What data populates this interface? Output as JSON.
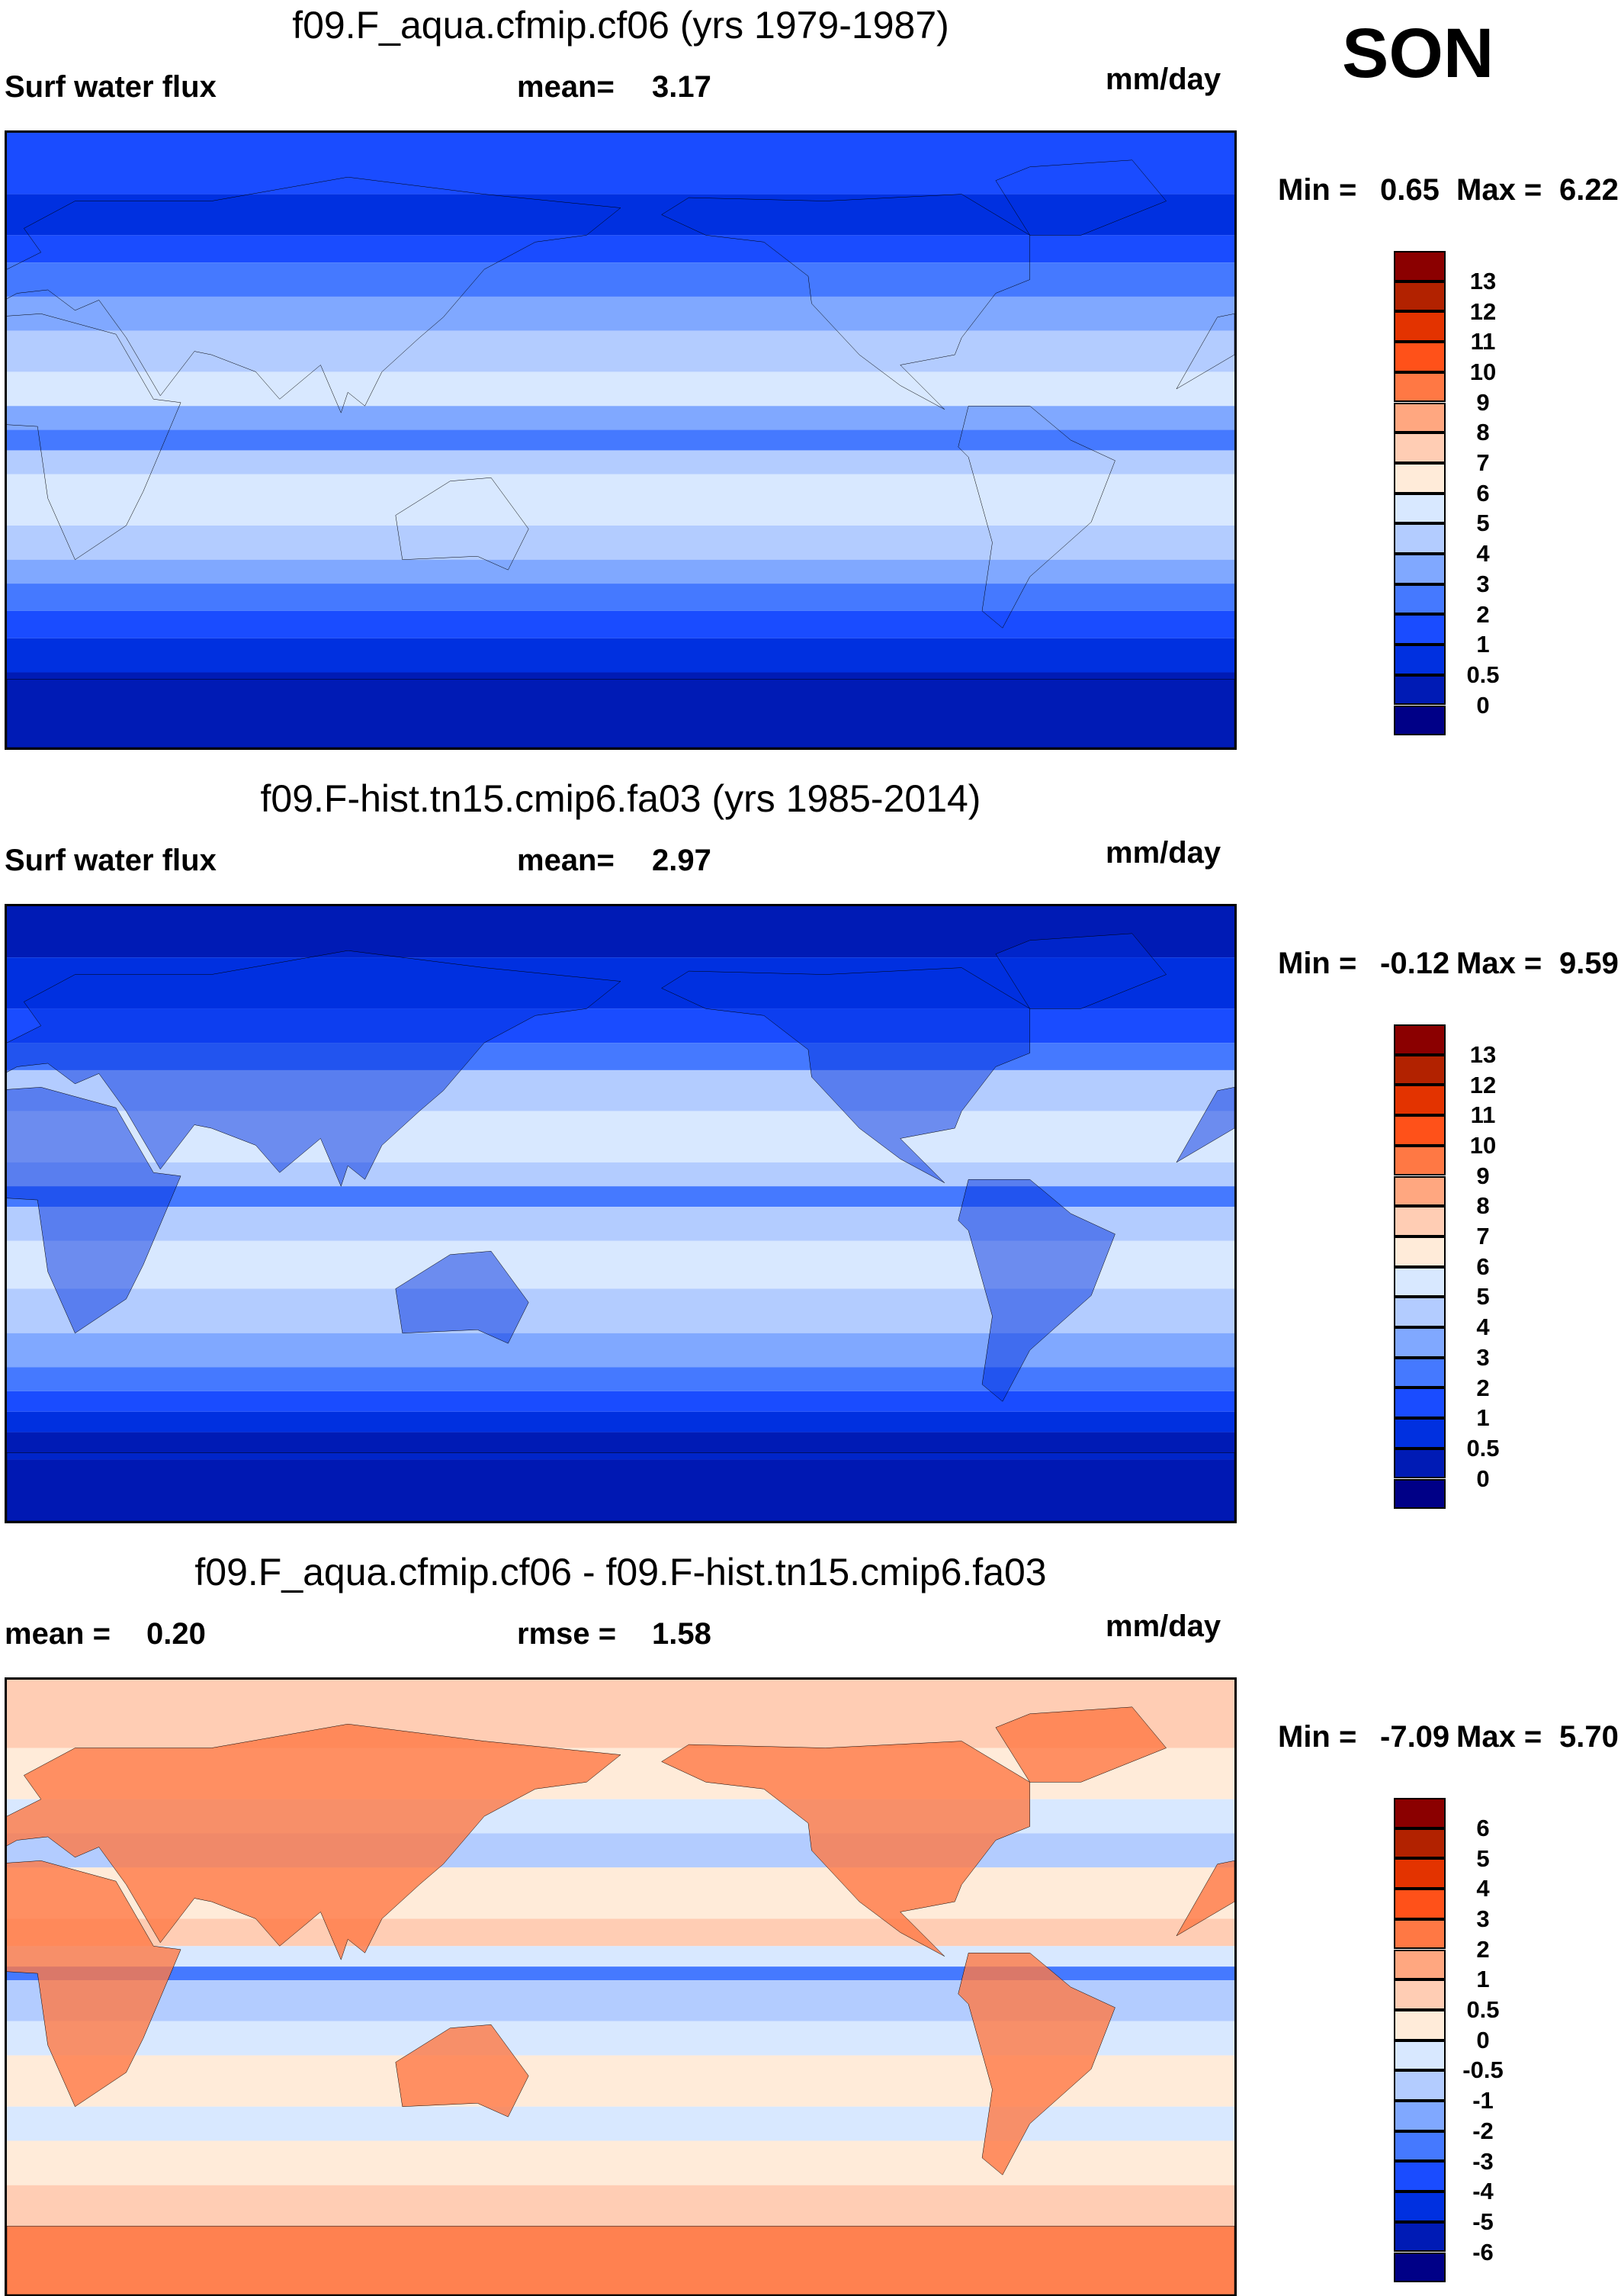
{
  "season": "SON",
  "colors": [
    "#000087",
    "#001bb5",
    "#0030e0",
    "#1a4cff",
    "#4579ff",
    "#80a8ff",
    "#b3ccff",
    "#d8e8ff",
    "#ffebd9",
    "#ffcdb4",
    "#ffa780",
    "#ff7844",
    "#ff5119",
    "#e33300",
    "#b22200",
    "#8b0000"
  ],
  "chart_data": [
    {
      "type": "heatmap",
      "title": "f09.F_aqua.cfmip.cf06 (yrs 1979-1987)",
      "left_label": "Surf water flux",
      "mean_label": "mean=",
      "mean": "3.17",
      "units": "mm/day",
      "min_label": "Min =",
      "min": "0.65",
      "max_label": "Max =",
      "max": "6.22",
      "levels": [
        "0",
        "0.5",
        "1",
        "2",
        "3",
        "4",
        "5",
        "6",
        "7",
        "8",
        "9",
        "10",
        "11",
        "12",
        "13"
      ]
    },
    {
      "type": "heatmap",
      "title": "f09.F-hist.tn15.cmip6.fa03 (yrs 1985-2014)",
      "left_label": "Surf water flux",
      "mean_label": "mean=",
      "mean": "2.97",
      "units": "mm/day",
      "min_label": "Min =",
      "min": "-0.12",
      "max_label": "Max =",
      "max": "9.59",
      "levels": [
        "0",
        "0.5",
        "1",
        "2",
        "3",
        "4",
        "5",
        "6",
        "7",
        "8",
        "9",
        "10",
        "11",
        "12",
        "13"
      ]
    },
    {
      "type": "heatmap",
      "title": "f09.F_aqua.cfmip.cf06 - f09.F-hist.tn15.cmip6.fa03",
      "left_label": "mean =",
      "mean": "0.20",
      "mean_label": "rmse =",
      "rmse": "1.58",
      "units": "mm/day",
      "min_label": "Min =",
      "min": "-7.09",
      "max_label": "Max =",
      "max": "5.70",
      "levels": [
        "-6",
        "-5",
        "-4",
        "-3",
        "-2",
        "-1",
        "-0.5",
        "0",
        "0.5",
        "1",
        "2",
        "3",
        "4",
        "5",
        "6"
      ]
    }
  ]
}
